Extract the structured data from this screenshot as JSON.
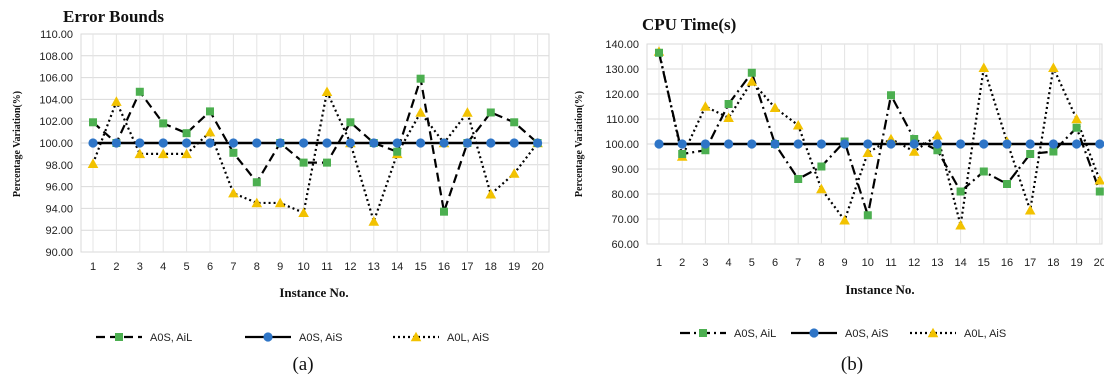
{
  "chart_data": [
    {
      "type": "line",
      "title": "Error Bounds",
      "xlabel": "Instance No.",
      "ylabel": "Percentage Variation(%)",
      "ylim": [
        90,
        110
      ],
      "ytick_step": 2,
      "ytick_decimals": 2,
      "grid": true,
      "legend_position": "bottom",
      "subcaption": "(a)",
      "categories": [
        "1",
        "2",
        "3",
        "4",
        "5",
        "6",
        "7",
        "8",
        "9",
        "10",
        "11",
        "12",
        "13",
        "14",
        "15",
        "16",
        "17",
        "18",
        "19",
        "20"
      ],
      "series": [
        {
          "name": "A0S, AiL",
          "color": "#4caf50",
          "marker": "square",
          "line": "dashed",
          "values": [
            101.9,
            100.0,
            104.7,
            101.8,
            100.9,
            102.9,
            99.1,
            96.4,
            100.0,
            98.2,
            98.2,
            101.9,
            100.0,
            99.2,
            105.9,
            93.7,
            100.0,
            102.8,
            101.9,
            100.0
          ]
        },
        {
          "name": "A0S, AiS",
          "color": "#2e75c7",
          "marker": "circle",
          "line": "solid",
          "values": [
            100.0,
            100.0,
            100.0,
            100.0,
            100.0,
            100.0,
            100.0,
            100.0,
            100.0,
            100.0,
            100.0,
            100.0,
            100.0,
            100.0,
            100.0,
            100.0,
            100.0,
            100.0,
            100.0,
            100.0
          ]
        },
        {
          "name": "A0L, AiS",
          "color": "#f2c200",
          "marker": "triangle",
          "line": "dotted",
          "values": [
            98.1,
            103.8,
            99.0,
            99.0,
            99.0,
            101.0,
            95.4,
            94.5,
            94.5,
            93.6,
            104.7,
            100.0,
            92.8,
            99.0,
            102.8,
            100.0,
            102.8,
            95.3,
            97.2,
            100.0
          ]
        }
      ]
    },
    {
      "type": "line",
      "title": "CPU Time(s)",
      "xlabel": "Instance No.",
      "ylabel": "Percentage Variation(%)",
      "ylim": [
        60,
        140
      ],
      "ytick_step": 10,
      "ytick_decimals": 2,
      "grid": true,
      "legend_position": "bottom",
      "subcaption": "(b)",
      "categories": [
        "1",
        "2",
        "3",
        "4",
        "5",
        "6",
        "7",
        "8",
        "9",
        "10",
        "11",
        "12",
        "13",
        "14",
        "15",
        "16",
        "17",
        "18",
        "19",
        "20"
      ],
      "series": [
        {
          "name": "A0S, AiL",
          "color": "#4caf50",
          "marker": "square",
          "line": "dashdot",
          "values": [
            136.5,
            96.0,
            97.5,
            116.0,
            128.5,
            100.0,
            86.0,
            91.0,
            101.0,
            71.5,
            119.5,
            102.0,
            97.5,
            81.0,
            89.0,
            84.0,
            96.0,
            97.0,
            106.5,
            81.0
          ]
        },
        {
          "name": "A0S, AiS",
          "color": "#2e75c7",
          "marker": "circle",
          "line": "solid",
          "values": [
            100.0,
            100.0,
            100.0,
            100.0,
            100.0,
            100.0,
            100.0,
            100.0,
            100.0,
            100.0,
            100.0,
            100.0,
            100.0,
            100.0,
            100.0,
            100.0,
            100.0,
            100.0,
            100.0,
            100.0
          ]
        },
        {
          "name": "A0L, AiS",
          "color": "#f2c200",
          "marker": "triangle",
          "line": "dotted",
          "values": [
            137.0,
            95.0,
            115.0,
            110.5,
            125.0,
            114.5,
            107.5,
            82.0,
            69.5,
            96.5,
            102.0,
            97.0,
            103.5,
            67.5,
            130.5,
            101.0,
            73.5,
            130.5,
            110.0,
            85.5
          ]
        }
      ]
    }
  ]
}
